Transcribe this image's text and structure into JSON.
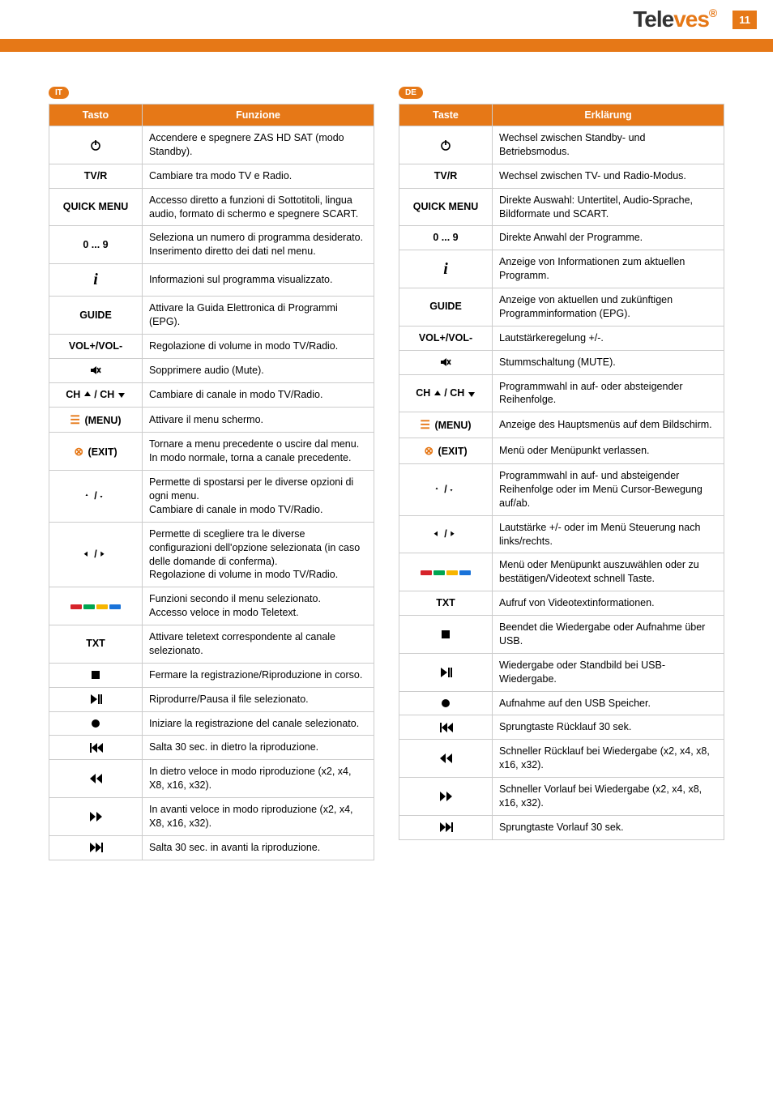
{
  "brand": {
    "part1": "Tele",
    "part2": "ves"
  },
  "page_number": "11",
  "lang_it": "IT",
  "lang_de": "DE",
  "header_it": {
    "key": "Tasto",
    "desc": "Funzione"
  },
  "header_de": {
    "key": "Taste",
    "desc": "Erklärung"
  },
  "it": [
    {
      "icon": "power",
      "desc": "Accendere e spegnere ZAS HD SAT (modo Standby)."
    },
    {
      "key": "TV/R",
      "desc": "Cambiare tra modo TV e Radio."
    },
    {
      "key": "QUICK MENU",
      "desc": "Accesso diretto a funzioni di Sottotitoli, lingua audio, formato di schermo e spegnere SCART."
    },
    {
      "key": "0 ... 9",
      "desc": "Seleziona un numero di programma desiderato.\nInserimento diretto dei dati nel menu."
    },
    {
      "icon": "info",
      "desc": "Informazioni sul programma visualizzato."
    },
    {
      "key": "GUIDE",
      "desc": "Attivare la Guida Elettronica di Programmi (EPG)."
    },
    {
      "key": "VOL+/VOL-",
      "desc": "Regolazione di volume in modo TV/Radio."
    },
    {
      "icon": "mute",
      "desc": "Sopprimere audio (Mute)."
    },
    {
      "icon": "chupdown",
      "desc": "Cambiare di canale in modo TV/Radio."
    },
    {
      "icon": "menu",
      "desc": "Attivare il menu schermo."
    },
    {
      "icon": "exit",
      "desc": "Tornare a menu precedente o uscire dal menu.\nIn modo normale, torna a canale precedente."
    },
    {
      "icon": "updown",
      "desc": "Permette di spostarsi per le diverse opzioni di ogni menu.\nCambiare di canale in modo TV/Radio."
    },
    {
      "icon": "leftright",
      "desc": "Permette di scegliere tra le diverse configurazioni dell'opzione selezionata (in caso delle domande di conferma).\nRegolazione di volume in modo TV/Radio."
    },
    {
      "icon": "colors",
      "desc": "Funzioni secondo il menu selezionato.\nAccesso veloce in modo Teletext."
    },
    {
      "key": "TXT",
      "desc": "Attivare teletext correspondente al canale selezionato."
    },
    {
      "icon": "stop",
      "desc": "Fermare la registrazione/Riproduzione in corso."
    },
    {
      "icon": "playpause",
      "desc": "Riprodurre/Pausa il file selezionato."
    },
    {
      "icon": "rec",
      "desc": "Iniziare la registrazione del canale selezionato."
    },
    {
      "icon": "skipback",
      "desc": "Salta 30 sec. in dietro la riproduzione."
    },
    {
      "icon": "rewind",
      "desc": "In dietro veloce in modo riproduzione (x2, x4, X8, x16, x32)."
    },
    {
      "icon": "forward",
      "desc": "In avanti veloce in modo riproduzione (x2, x4, X8, x16, x32)."
    },
    {
      "icon": "skipfwd",
      "desc": "Salta 30 sec. in avanti la riproduzione."
    }
  ],
  "de": [
    {
      "icon": "power",
      "desc": "Wechsel zwischen Standby- und Betriebsmodus."
    },
    {
      "key": "TV/R",
      "desc": "Wechsel zwischen TV- und Radio-Modus."
    },
    {
      "key": "QUICK MENU",
      "desc": "Direkte Auswahl: Untertitel, Audio-Sprache, Bildformate und SCART."
    },
    {
      "key": "0 ... 9",
      "desc": "Direkte Anwahl der Programme."
    },
    {
      "icon": "info",
      "desc": "Anzeige von Informationen zum aktuellen Programm."
    },
    {
      "key": "GUIDE",
      "desc": "Anzeige von aktuellen und zukünftigen Programminformation (EPG)."
    },
    {
      "key": "VOL+/VOL-",
      "desc": "Lautstärkeregelung +/-."
    },
    {
      "icon": "mute",
      "desc": "Stummschaltung (MUTE)."
    },
    {
      "icon": "chupdown",
      "desc": "Programmwahl in auf- oder absteigender Reihenfolge."
    },
    {
      "icon": "menu",
      "desc": "Anzeige des Hauptsmenüs auf dem Bildschirm."
    },
    {
      "icon": "exit",
      "desc": "Menü oder Menüpunkt verlassen."
    },
    {
      "icon": "updown",
      "desc": "Programmwahl in auf- und absteigender Reihenfolge oder im Menü Cursor-Bewegung auf/ab."
    },
    {
      "icon": "leftright",
      "desc": "Lautstärke +/- oder im Menü Steuerung nach links/rechts."
    },
    {
      "icon": "colors",
      "desc": "Menü oder Menüpunkt auszuwählen oder zu bestätigen/Videotext schnell Taste."
    },
    {
      "key": "TXT",
      "desc": "Aufruf von Videotextinformationen."
    },
    {
      "icon": "stop",
      "desc": "Beendet die Wiedergabe oder Aufnahme über USB."
    },
    {
      "icon": "playpause",
      "desc": "Wiedergabe oder Standbild bei USB-Wiedergabe."
    },
    {
      "icon": "rec",
      "desc": "Aufnahme auf den USB Speicher."
    },
    {
      "icon": "skipback",
      "desc": "Sprungtaste Rücklauf 30 sek."
    },
    {
      "icon": "rewind",
      "desc": "Schneller Rücklauf bei Wiedergabe (x2, x4, x8, x16, x32)."
    },
    {
      "icon": "forward",
      "desc": "Schneller Vorlauf bei Wiedergabe (x2, x4, x8, x16, x32)."
    },
    {
      "icon": "skipfwd",
      "desc": "Sprungtaste Vorlauf 30 sek."
    }
  ]
}
